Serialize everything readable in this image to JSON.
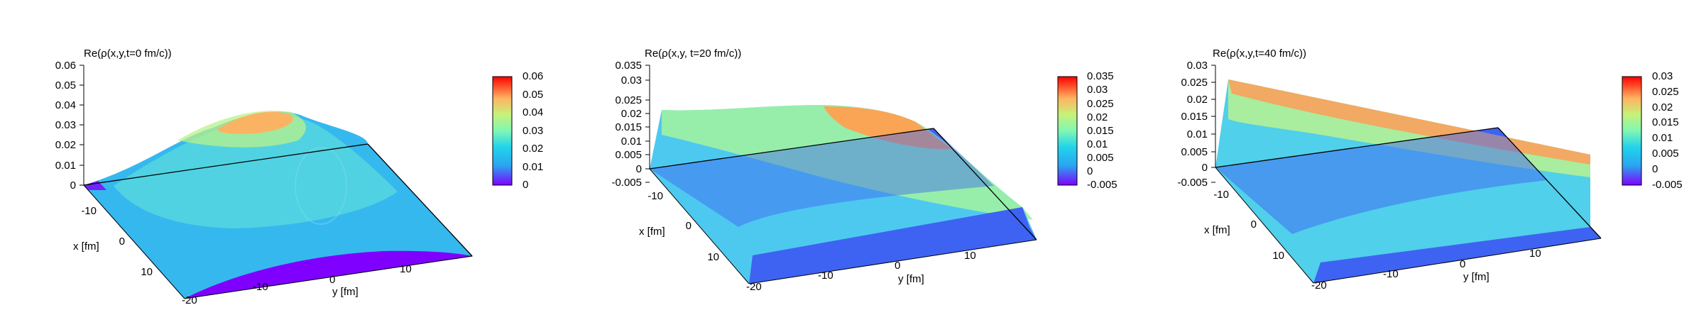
{
  "chart_data": [
    {
      "type": "surface",
      "title": "Re(ρ(x,y,t=0 fm/c))",
      "xlabel": "x [fm]",
      "ylabel": "y [fm]",
      "x_ticks": [
        "-10",
        "0",
        "10"
      ],
      "y_ticks": [
        "-20",
        "-10",
        "0",
        "10"
      ],
      "z_ticks": [
        "0",
        "0.01",
        "0.02",
        "0.03",
        "0.04",
        "0.05",
        "0.06"
      ],
      "zlim": [
        0,
        0.06
      ],
      "colorbar_ticks": [
        "0",
        "0.01",
        "0.02",
        "0.03",
        "0.04",
        "0.05",
        "0.06"
      ],
      "colorbar_range": [
        0,
        0.06
      ],
      "surface": "gaussian",
      "peak_value": 0.036
    },
    {
      "type": "surface",
      "title": "Re(ρ(x,y, t=20 fm/c))",
      "xlabel": "x [fm]",
      "ylabel": "y [fm]",
      "x_ticks": [
        "-10",
        "0",
        "10"
      ],
      "y_ticks": [
        "-20",
        "-10",
        "0",
        "10"
      ],
      "z_ticks": [
        "-0.005",
        "0",
        "0.005",
        "0.01",
        "0.015",
        "0.02",
        "0.025",
        "0.03",
        "0.035"
      ],
      "zlim": [
        -0.005,
        0.035
      ],
      "colorbar_ticks": [
        "-0.005",
        "0",
        "0.005",
        "0.01",
        "0.015",
        "0.02",
        "0.025",
        "0.03",
        "0.035"
      ],
      "colorbar_range": [
        -0.005,
        0.035
      ],
      "surface": "plateau",
      "peak_value": 0.02
    },
    {
      "type": "surface",
      "title": "Re(ρ(x,y,t=40 fm/c))",
      "xlabel": "x [fm]",
      "ylabel": "y [fm]",
      "x_ticks": [
        "-10",
        "0",
        "10"
      ],
      "y_ticks": [
        "-20",
        "-10",
        "0",
        "10"
      ],
      "z_ticks": [
        "-0.005",
        "0",
        "0.005",
        "0.01",
        "0.015",
        "0.02",
        "0.025",
        "0.03"
      ],
      "zlim": [
        -0.005,
        0.03
      ],
      "colorbar_ticks": [
        "-0.005",
        "0",
        "0.005",
        "0.01",
        "0.015",
        "0.02",
        "0.025",
        "0.03"
      ],
      "colorbar_range": [
        -0.005,
        0.03
      ],
      "surface": "slab",
      "peak_value": 0.026
    }
  ]
}
